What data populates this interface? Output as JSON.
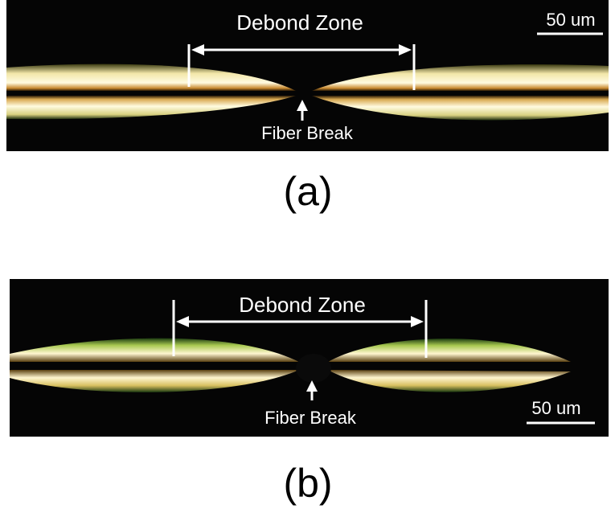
{
  "panels": [
    {
      "label": "(a)",
      "zone_label": "Debond Zone",
      "break_label": "Fiber Break",
      "scale_label": "50 um"
    },
    {
      "label": "(b)",
      "zone_label": "Debond Zone",
      "break_label": "Fiber Break",
      "scale_label": "50 um"
    }
  ]
}
